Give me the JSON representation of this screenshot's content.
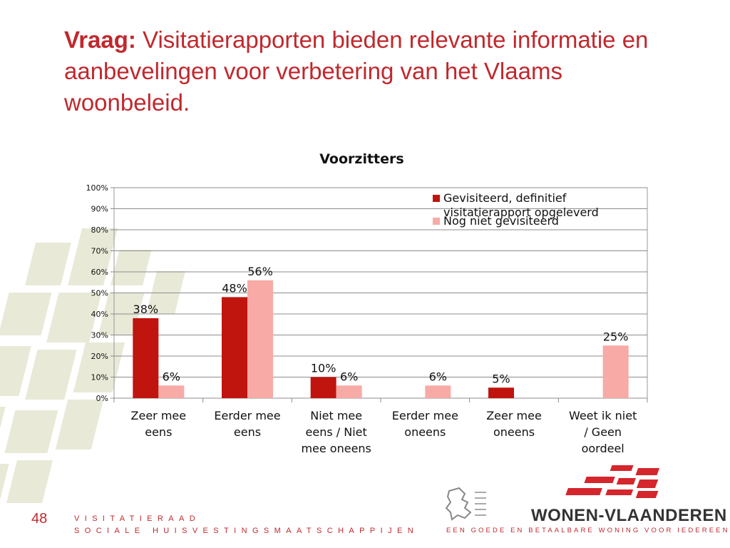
{
  "slide": {
    "title_bold": "Vraag:",
    "title_rest": " Visitatierapporten bieden relevante informatie en aanbevelingen voor verbetering van het Vlaams woonbeleid.",
    "page_number": "48",
    "footer_line1": "VISITATIERAAD",
    "footer_line2": "SOCIALE HUISVESTINGSMAATSCHAPPIJEN",
    "brand": "WONEN-VLAANDEREN",
    "tagline": "EEN GOEDE EN BETAALBARE WONING VOOR IEDEREEN",
    "accent_color": "#c0282d"
  },
  "chart_data": {
    "type": "bar",
    "title": "Voorzitters",
    "categories": [
      [
        "Zeer mee",
        "eens"
      ],
      [
        "Eerder mee",
        "eens"
      ],
      [
        "Niet mee",
        "eens / Niet",
        "mee oneens"
      ],
      [
        "Eerder mee",
        "oneens"
      ],
      [
        "Zeer mee",
        "oneens"
      ],
      [
        "Weet ik niet",
        "/ Geen",
        "oordeel"
      ]
    ],
    "series": [
      {
        "name": "Gevisiteerd, definitief visitatierapport opgeleverd",
        "values": [
          38,
          48,
          10,
          null,
          5,
          null
        ],
        "labels": [
          "38%",
          "48%",
          "10%",
          "",
          "5%",
          ""
        ],
        "color": "#c0140e"
      },
      {
        "name": "Nog niet gevisiteerd",
        "values": [
          6,
          56,
          6,
          6,
          null,
          25
        ],
        "labels": [
          "6%",
          "56%",
          "6%",
          "6%",
          "",
          "25%"
        ],
        "color": "#f8aaa6"
      }
    ],
    "ylim": [
      0,
      100
    ],
    "yticks": [
      "0%",
      "10%",
      "20%",
      "30%",
      "40%",
      "50%",
      "60%",
      "70%",
      "80%",
      "90%",
      "100%"
    ],
    "grid": true,
    "legend": "top-right"
  }
}
